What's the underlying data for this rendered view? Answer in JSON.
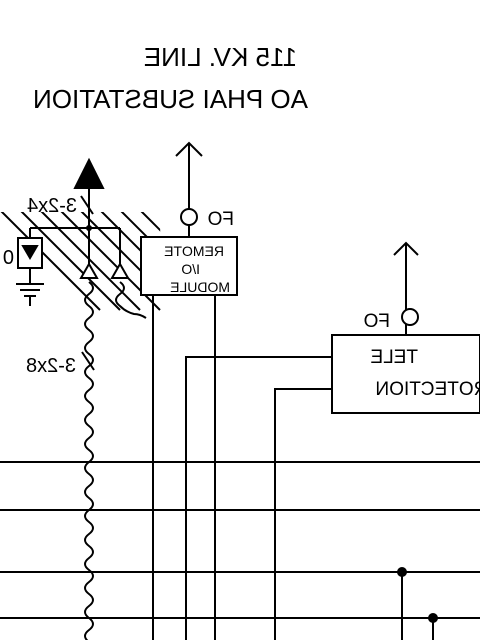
{
  "header": {
    "line1": "115 KV. LINE",
    "line2": "AO PHAI SUBSTATION"
  },
  "labels": {
    "cable_top": "3-2x4",
    "cable_mid": "3-2x8",
    "fo_remote": "FO",
    "fo_tele": "FO",
    "meter_zero": "0"
  },
  "remote_io": {
    "line1": "REMOTE",
    "line2": "I/O",
    "line3": "MODULE"
  },
  "teleprotection": {
    "line1": "TELE",
    "line2": "PROTECTION"
  },
  "colors": {
    "ink": "#000000",
    "paper": "#ffffff"
  }
}
